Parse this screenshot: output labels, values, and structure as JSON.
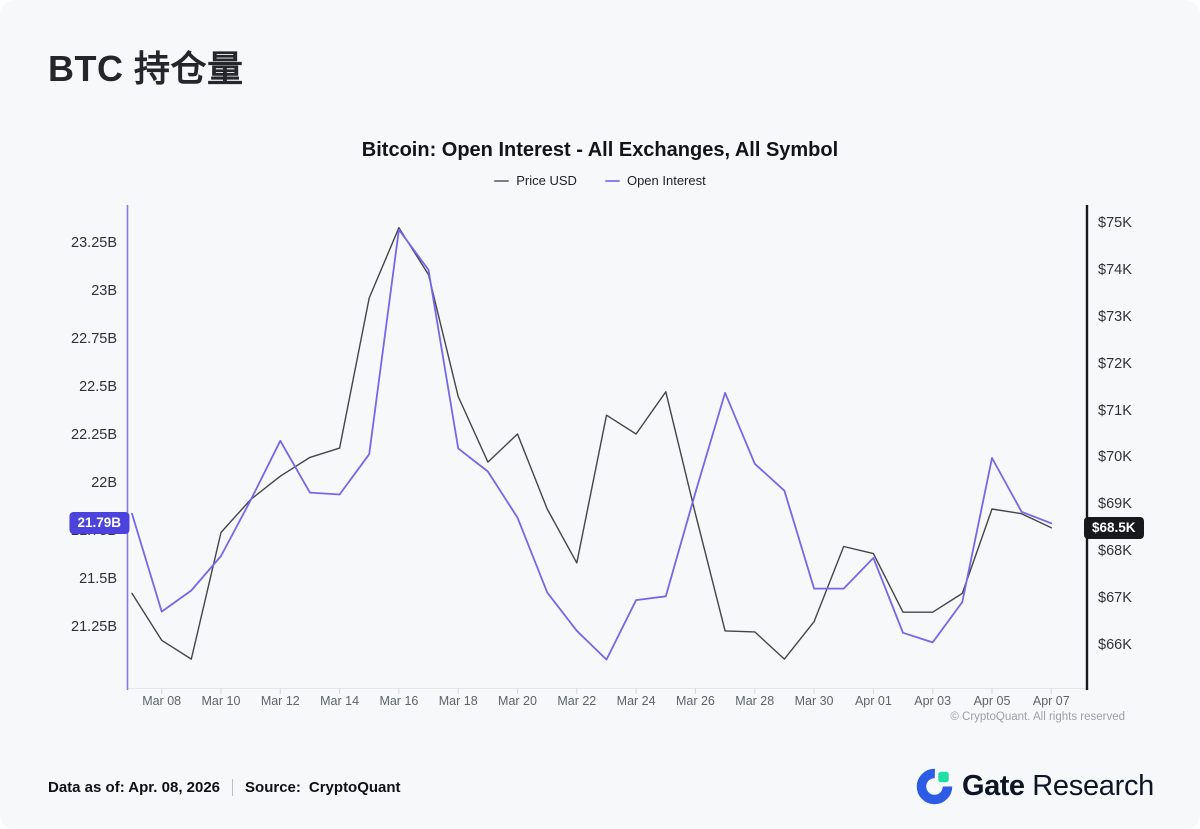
{
  "page": {
    "title": "BTC 持仓量"
  },
  "chart_data": {
    "type": "line",
    "title": "Bitcoin: Open Interest - All Exchanges, All Symbol",
    "legend": [
      {
        "label": "Price USD",
        "swatch_color": "#7d7f85"
      },
      {
        "label": "Open Interest",
        "swatch_color": "#8b7ef2"
      }
    ],
    "dates": [
      "Mar 07",
      "Mar 08",
      "Mar 09",
      "Mar 10",
      "Mar 11",
      "Mar 12",
      "Mar 13",
      "Mar 14",
      "Mar 15",
      "Mar 16",
      "Mar 17",
      "Mar 18",
      "Mar 19",
      "Mar 20",
      "Mar 21",
      "Mar 22",
      "Mar 23",
      "Mar 24",
      "Mar 25",
      "Mar 26",
      "Mar 27",
      "Mar 28",
      "Mar 29",
      "Mar 30",
      "Mar 31",
      "Apr 01",
      "Apr 02",
      "Apr 03",
      "Apr 04",
      "Apr 05",
      "Apr 06",
      "Apr 07"
    ],
    "series": [
      {
        "name": "Price USD",
        "axis": "right",
        "unit": "K USD",
        "color": "#43454b",
        "values": [
          67.1,
          66.1,
          65.7,
          68.4,
          69.1,
          69.6,
          70.0,
          70.2,
          73.4,
          74.9,
          73.9,
          71.3,
          69.9,
          70.5,
          68.9,
          67.75,
          70.9,
          70.5,
          71.4,
          68.8,
          66.3,
          66.28,
          65.7,
          66.5,
          68.1,
          67.95,
          66.7,
          66.7,
          67.1,
          68.9,
          68.8,
          68.5
        ]
      },
      {
        "name": "Open Interest",
        "axis": "left",
        "unit": "B USD",
        "color": "#7467eb",
        "values": [
          21.84,
          21.33,
          21.44,
          21.62,
          21.91,
          22.22,
          21.95,
          21.94,
          22.15,
          23.32,
          23.11,
          22.18,
          22.06,
          21.82,
          21.43,
          21.23,
          21.08,
          21.39,
          21.41,
          21.95,
          22.47,
          22.1,
          21.96,
          21.45,
          21.45,
          21.61,
          21.22,
          21.17,
          21.38,
          22.13,
          21.85,
          21.79
        ]
      }
    ],
    "left_axis": {
      "range": [
        21.25,
        23.25
      ],
      "axis_color": "#8579ee",
      "ticks": [
        {
          "label": "23.25B",
          "value": 23.25
        },
        {
          "label": "23B",
          "value": 23.0
        },
        {
          "label": "22.75B",
          "value": 22.75
        },
        {
          "label": "22.5B",
          "value": 22.5
        },
        {
          "label": "22.25B",
          "value": 22.25
        },
        {
          "label": "22B",
          "value": 22.0
        },
        {
          "label": "21.75B",
          "value": 21.75
        },
        {
          "label": "21.5B",
          "value": 21.5
        },
        {
          "label": "21.25B",
          "value": 21.25
        }
      ],
      "badge": {
        "label": "21.79B",
        "value": 21.79,
        "color": "#4c43dc"
      }
    },
    "right_axis": {
      "range": [
        66,
        75
      ],
      "axis_color": "#17191d",
      "ticks": [
        {
          "label": "$75K",
          "value": 75
        },
        {
          "label": "$74K",
          "value": 74
        },
        {
          "label": "$73K",
          "value": 73
        },
        {
          "label": "$72K",
          "value": 72
        },
        {
          "label": "$71K",
          "value": 71
        },
        {
          "label": "$70K",
          "value": 70
        },
        {
          "label": "$69K",
          "value": 69
        },
        {
          "label": "$68K",
          "value": 68
        },
        {
          "label": "$67K",
          "value": 67
        },
        {
          "label": "$66K",
          "value": 66
        }
      ],
      "badge": {
        "label": "$68.5K",
        "value": 68.5,
        "color": "#17191d"
      }
    },
    "x_ticks": [
      {
        "label": "Mar 08",
        "index": 1
      },
      {
        "label": "Mar 10",
        "index": 3
      },
      {
        "label": "Mar 12",
        "index": 5
      },
      {
        "label": "Mar 14",
        "index": 7
      },
      {
        "label": "Mar 16",
        "index": 9
      },
      {
        "label": "Mar 18",
        "index": 11
      },
      {
        "label": "Mar 20",
        "index": 13
      },
      {
        "label": "Mar 22",
        "index": 15
      },
      {
        "label": "Mar 24",
        "index": 17
      },
      {
        "label": "Mar 26",
        "index": 19
      },
      {
        "label": "Mar 28",
        "index": 21
      },
      {
        "label": "Mar 30",
        "index": 23
      },
      {
        "label": "Apr 01",
        "index": 25
      },
      {
        "label": "Apr 03",
        "index": 27
      },
      {
        "label": "Apr 05",
        "index": 29
      },
      {
        "label": "Apr 07",
        "index": 31
      }
    ],
    "watermark": "© CryptoQuant. All rights reserved"
  },
  "footer": {
    "data_as_of": "Data as of: Apr. 08, 2026",
    "source_label": "Source:",
    "source_value": "CryptoQuant"
  },
  "branding": {
    "name_bold": "Gate",
    "name_regular": "Research"
  }
}
